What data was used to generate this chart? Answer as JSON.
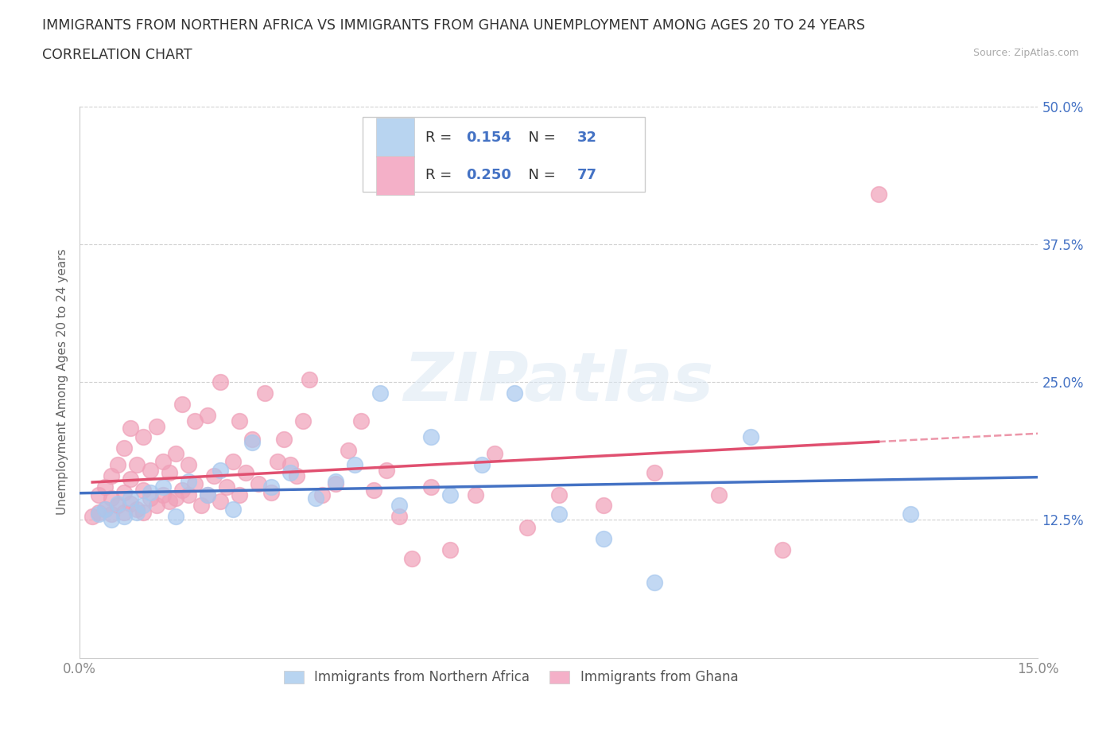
{
  "title_line1": "IMMIGRANTS FROM NORTHERN AFRICA VS IMMIGRANTS FROM GHANA UNEMPLOYMENT AMONG AGES 20 TO 24 YEARS",
  "title_line2": "CORRELATION CHART",
  "source_text": "Source: ZipAtlas.com",
  "ylabel": "Unemployment Among Ages 20 to 24 years",
  "xlim": [
    0.0,
    0.15
  ],
  "ylim": [
    0.0,
    0.5
  ],
  "xtick_positions": [
    0.0,
    0.05,
    0.1,
    0.15
  ],
  "xticklabels": [
    "0.0%",
    "",
    "",
    "15.0%"
  ],
  "ytick_positions": [
    0.0,
    0.125,
    0.25,
    0.375,
    0.5
  ],
  "ytick_labels": [
    "",
    "12.5%",
    "25.0%",
    "37.5%",
    "50.0%"
  ],
  "blue_R": 0.154,
  "blue_N": 32,
  "pink_R": 0.25,
  "pink_N": 77,
  "blue_scatter_color": "#a8c8ee",
  "pink_scatter_color": "#f0a0b8",
  "blue_line_color": "#4472c4",
  "pink_line_color": "#e05070",
  "blue_legend_color": "#b8d4f0",
  "pink_legend_color": "#f4b0c8",
  "watermark": "ZIPatlas",
  "watermark_color": "#dce8f4",
  "legend_label_blue": "Immigrants from Northern Africa",
  "legend_label_pink": "Immigrants from Ghana",
  "blue_x": [
    0.003,
    0.004,
    0.005,
    0.006,
    0.007,
    0.008,
    0.009,
    0.01,
    0.011,
    0.013,
    0.015,
    0.017,
    0.02,
    0.022,
    0.024,
    0.027,
    0.03,
    0.033,
    0.037,
    0.04,
    0.043,
    0.047,
    0.05,
    0.055,
    0.058,
    0.063,
    0.068,
    0.075,
    0.082,
    0.09,
    0.105,
    0.13
  ],
  "blue_y": [
    0.13,
    0.135,
    0.125,
    0.14,
    0.128,
    0.145,
    0.132,
    0.138,
    0.15,
    0.155,
    0.128,
    0.16,
    0.148,
    0.17,
    0.135,
    0.195,
    0.155,
    0.168,
    0.145,
    0.16,
    0.175,
    0.24,
    0.138,
    0.2,
    0.148,
    0.175,
    0.24,
    0.13,
    0.108,
    0.068,
    0.2,
    0.13
  ],
  "pink_x": [
    0.002,
    0.003,
    0.003,
    0.004,
    0.004,
    0.005,
    0.005,
    0.005,
    0.006,
    0.006,
    0.007,
    0.007,
    0.007,
    0.008,
    0.008,
    0.008,
    0.009,
    0.009,
    0.01,
    0.01,
    0.01,
    0.011,
    0.011,
    0.012,
    0.012,
    0.013,
    0.013,
    0.014,
    0.014,
    0.015,
    0.015,
    0.016,
    0.016,
    0.017,
    0.017,
    0.018,
    0.018,
    0.019,
    0.02,
    0.02,
    0.021,
    0.022,
    0.022,
    0.023,
    0.024,
    0.025,
    0.025,
    0.026,
    0.027,
    0.028,
    0.029,
    0.03,
    0.031,
    0.032,
    0.033,
    0.034,
    0.035,
    0.036,
    0.038,
    0.04,
    0.042,
    0.044,
    0.046,
    0.048,
    0.05,
    0.052,
    0.055,
    0.058,
    0.062,
    0.065,
    0.07,
    0.075,
    0.082,
    0.09,
    0.1,
    0.11,
    0.125
  ],
  "pink_y": [
    0.128,
    0.132,
    0.148,
    0.135,
    0.155,
    0.13,
    0.145,
    0.165,
    0.138,
    0.175,
    0.132,
    0.15,
    0.19,
    0.14,
    0.162,
    0.208,
    0.135,
    0.175,
    0.132,
    0.152,
    0.2,
    0.145,
    0.17,
    0.138,
    0.21,
    0.148,
    0.178,
    0.142,
    0.168,
    0.145,
    0.185,
    0.152,
    0.23,
    0.148,
    0.175,
    0.158,
    0.215,
    0.138,
    0.148,
    0.22,
    0.165,
    0.142,
    0.25,
    0.155,
    0.178,
    0.148,
    0.215,
    0.168,
    0.198,
    0.158,
    0.24,
    0.15,
    0.178,
    0.198,
    0.175,
    0.165,
    0.215,
    0.252,
    0.148,
    0.158,
    0.188,
    0.215,
    0.152,
    0.17,
    0.128,
    0.09,
    0.155,
    0.098,
    0.148,
    0.185,
    0.118,
    0.148,
    0.138,
    0.168,
    0.148,
    0.098,
    0.42
  ]
}
